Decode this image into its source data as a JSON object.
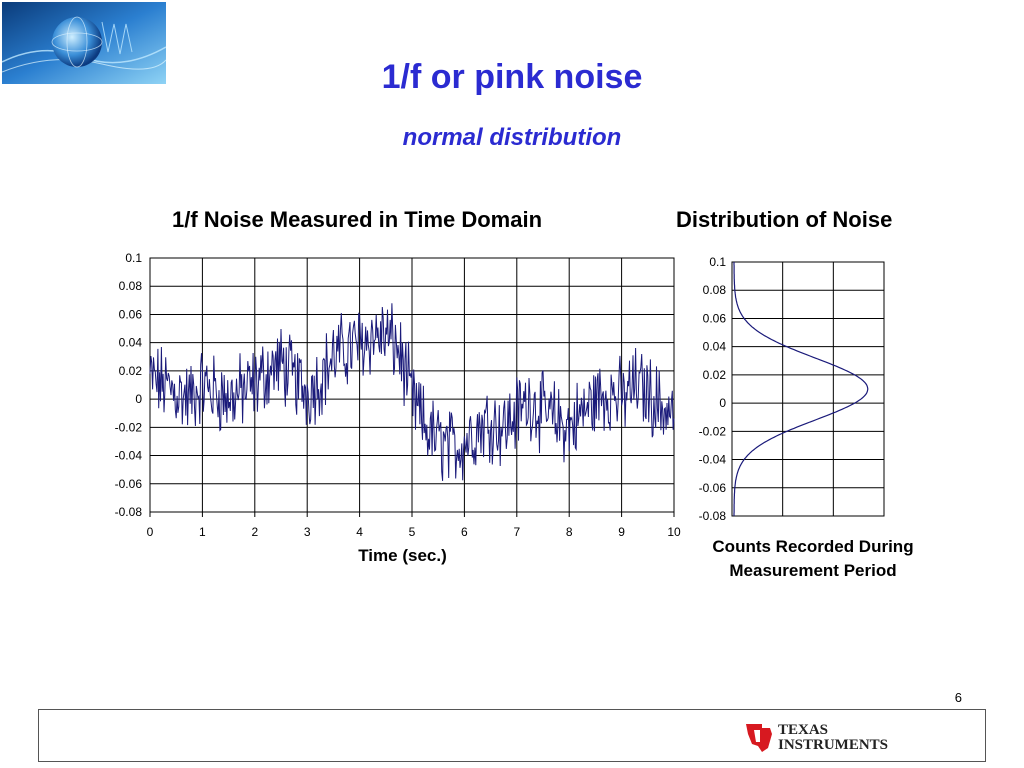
{
  "slide": {
    "title": "1/f  or pink noise",
    "subtitle": "normal distribution",
    "page_number": "6",
    "brand_line1": "TEXAS",
    "brand_line2": "INSTRUMENTS"
  },
  "colors": {
    "title": "#2b2bd1",
    "series": "#1a1a7a",
    "grid": "#000000"
  },
  "chart_data": [
    {
      "type": "line",
      "title": "1/f Noise Measured in Time Domain",
      "xlabel": "Time (sec.)",
      "ylabel": "",
      "xlim": [
        0,
        10
      ],
      "ylim": [
        -0.08,
        0.1
      ],
      "x_ticks": [
        0,
        1,
        2,
        3,
        4,
        5,
        6,
        7,
        8,
        9,
        10
      ],
      "y_ticks": [
        0.1,
        0.08,
        0.06,
        0.04,
        0.02,
        0,
        -0.02,
        -0.04,
        -0.06,
        -0.08
      ],
      "grid": true,
      "series": [
        {
          "x": [
            0,
            0.25,
            0.5,
            0.75,
            1,
            1.25,
            1.5,
            1.75,
            2,
            2.25,
            2.5,
            2.75,
            3,
            3.25,
            3.5,
            3.75,
            4,
            4.25,
            4.5,
            4.75,
            5,
            5.25,
            5.5,
            5.75,
            6,
            6.25,
            6.5,
            6.75,
            7,
            7.25,
            7.5,
            7.75,
            8,
            8.25,
            8.5,
            8.75,
            9,
            9.25,
            9.5,
            9.75,
            10
          ],
          "y": [
            0.015,
            0.01,
            0.005,
            0.0,
            0.01,
            0.005,
            0.0,
            0.005,
            0.01,
            0.02,
            0.025,
            0.015,
            0.005,
            0.015,
            0.03,
            0.035,
            0.04,
            0.045,
            0.045,
            0.035,
            0.0,
            -0.02,
            -0.03,
            -0.035,
            -0.03,
            -0.02,
            -0.015,
            -0.02,
            -0.01,
            0.0,
            -0.01,
            -0.015,
            -0.02,
            -0.01,
            0.0,
            0.005,
            0.0,
            0.01,
            0.005,
            -0.005,
            -0.01
          ]
        }
      ]
    },
    {
      "type": "line",
      "title": "Distribution of Noise",
      "xlabel": "Counts Recorded During Measurement Period",
      "ylabel": "",
      "ylim": [
        -0.08,
        0.1
      ],
      "y_ticks": [
        0.1,
        0.08,
        0.06,
        0.04,
        0.02,
        0,
        -0.02,
        -0.04,
        -0.06,
        -0.08
      ],
      "grid": true,
      "distribution": {
        "shape": "normal",
        "mean": 0.01,
        "stdev": 0.022
      }
    }
  ]
}
